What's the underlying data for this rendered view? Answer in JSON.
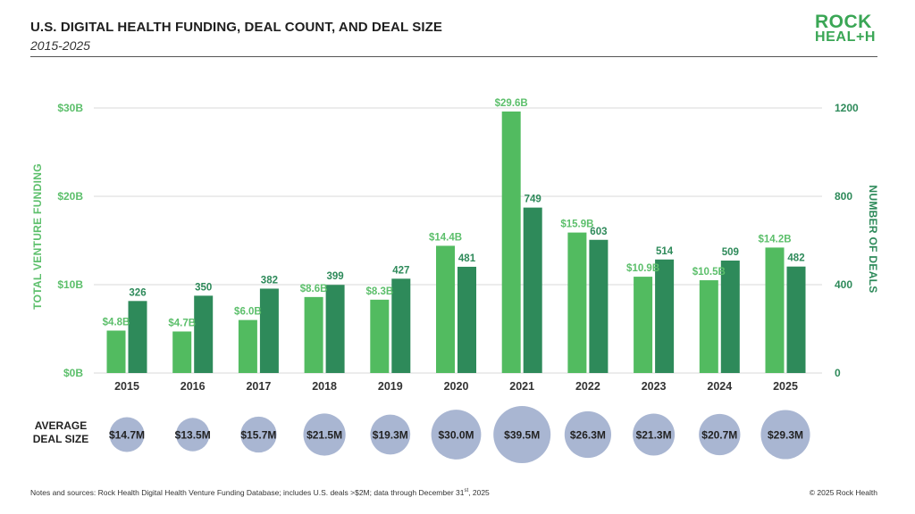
{
  "header": {
    "title": "U.S. DIGITAL HEALTH FUNDING, DEAL COUNT, AND DEAL SIZE",
    "subtitle": "2015-2025"
  },
  "logo": {
    "line1": "ROCK",
    "line2_a": "HEAL",
    "line2_plus": "+",
    "line2_b": "H"
  },
  "colors": {
    "funding": "#52bb60",
    "deals": "#2e8a5a",
    "bubble": "#a9b6d2",
    "grid": "#d9d9d9"
  },
  "chart_data": {
    "type": "bar",
    "categories": [
      "2015",
      "2016",
      "2017",
      "2018",
      "2019",
      "2020",
      "2021",
      "2022",
      "2023",
      "2024",
      "2025"
    ],
    "series": [
      {
        "axis": "left",
        "values": [
          4.8,
          4.7,
          6.0,
          8.6,
          8.3,
          14.4,
          29.6,
          15.9,
          10.9,
          10.5,
          14.2
        ],
        "labels": [
          "$4.8B",
          "$4.7B",
          "$6.0B",
          "$8.6B",
          "$8.3B",
          "$14.4B",
          "$29.6B",
          "$15.9B",
          "$10.9B",
          "$10.5B",
          "$14.2B"
        ]
      },
      {
        "axis": "right",
        "values": [
          326,
          350,
          382,
          399,
          427,
          481,
          749,
          603,
          514,
          509,
          482
        ],
        "labels": [
          "326",
          "350",
          "382",
          "399",
          "427",
          "481",
          "749",
          "603",
          "514",
          "509",
          "482"
        ]
      }
    ],
    "ylabel_left": "TOTAL VENTURE FUNDING",
    "ylabel_right": "NUMBER OF DEALS",
    "ylim_left": [
      0,
      30
    ],
    "ylim_right": [
      0,
      1200
    ],
    "yticks_left": [
      "$0B",
      "$10B",
      "$20B",
      "$30B"
    ],
    "yticks_right": [
      "0",
      "400",
      "800",
      "1200"
    ],
    "grid": true,
    "average_deal_size": {
      "label_line1": "AVERAGE",
      "label_line2": "DEAL SIZE",
      "values": [
        14.7,
        13.5,
        15.7,
        21.5,
        19.3,
        30.0,
        39.5,
        26.3,
        21.3,
        20.7,
        29.3
      ],
      "labels": [
        "$14.7M",
        "$13.5M",
        "$15.7M",
        "$21.5M",
        "$19.3M",
        "$30.0M",
        "$39.5M",
        "$26.3M",
        "$21.3M",
        "$20.7M",
        "$29.3M"
      ]
    }
  },
  "footer": {
    "notes_a": "Notes and sources: Rock Health Digital Health Venture Funding Database; includes U.S. deals >$2M; data through December 31",
    "notes_sup": "st",
    "notes_b": ", 2025",
    "copyright": "© 2025 Rock Health"
  }
}
